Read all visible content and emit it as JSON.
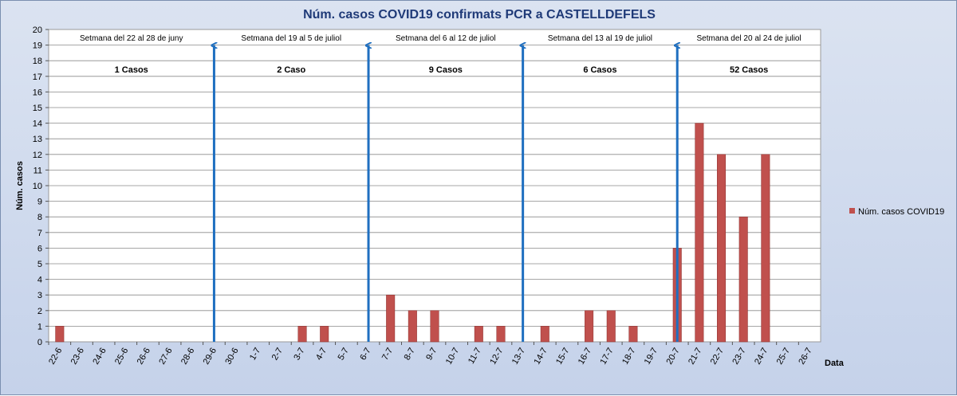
{
  "chart_data": {
    "type": "bar",
    "title": "Núm. casos COVID19 confirmats PCR a CASTELLDEFELS",
    "xlabel": "Data",
    "ylabel": "Núm. casos",
    "ylim": [
      0,
      20
    ],
    "grid": true,
    "legend_position": "right",
    "categories": [
      "22-6",
      "23-6",
      "24-6",
      "25-6",
      "26-6",
      "27-6",
      "28-6",
      "29-6",
      "30-6",
      "1-7",
      "2-7",
      "3-7",
      "4-7",
      "5-7",
      "6-7",
      "7-7",
      "8-7",
      "9-7",
      "10-7",
      "11-7",
      "12-7",
      "13-7",
      "14-7",
      "15-7",
      "16-7",
      "17-7",
      "18-7",
      "19-7",
      "20-7",
      "21-7",
      "22-7",
      "23-7",
      "24-7",
      "25-7",
      "26-7"
    ],
    "series": [
      {
        "name": "Núm. casos COVID19",
        "color": "#c0504d",
        "values": [
          1,
          0,
          0,
          0,
          0,
          0,
          0,
          0,
          0,
          0,
          0,
          1,
          1,
          0,
          0,
          3,
          2,
          2,
          0,
          1,
          1,
          0,
          1,
          0,
          2,
          2,
          1,
          0,
          6,
          14,
          12,
          8,
          12,
          0,
          0
        ]
      }
    ],
    "week_separators": {
      "color": "#1f6fc0",
      "after_category_index": [
        6,
        13,
        20,
        27
      ]
    },
    "week_annotations": [
      {
        "label": "Setmana del 22 al 28 de juny",
        "total": "1 Casos"
      },
      {
        "label": "Setmana del  19 al  5 de juliol",
        "total": "2 Caso"
      },
      {
        "label": "Setmana del 6 al  12 de juliol",
        "total": "9 Casos"
      },
      {
        "label": "Setmana del 13 al 19 de juliol",
        "total": "6 Casos"
      },
      {
        "label": "Setmana del 20 al 24 de juliol",
        "total": "52 Casos"
      }
    ]
  }
}
